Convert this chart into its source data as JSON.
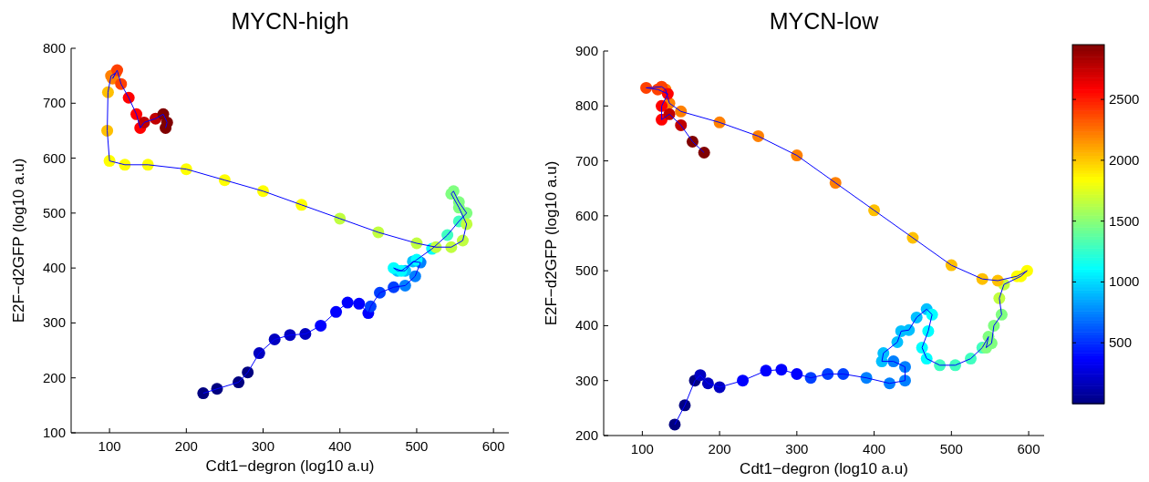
{
  "chart_data": [
    {
      "type": "scatter",
      "title": "MYCN-high",
      "xlabel": "Cdt1−degron (log10 a.u)",
      "ylabel": "E2F−d2GFP (log10 a.u)",
      "xlim": [
        50,
        620
      ],
      "ylim": [
        100,
        800
      ],
      "xticks": [
        100,
        200,
        300,
        400,
        500,
        600
      ],
      "yticks": [
        100,
        200,
        300,
        400,
        500,
        600,
        700,
        800
      ],
      "grid": false,
      "marker": "circle",
      "x": [
        222,
        240,
        268,
        280,
        295,
        315,
        335,
        355,
        375,
        395,
        410,
        425,
        437,
        440,
        452,
        470,
        485,
        498,
        505,
        495,
        485,
        475,
        470,
        480,
        500,
        520,
        540,
        555,
        565,
        555,
        548,
        545,
        555,
        565,
        560,
        545,
        525,
        500,
        450,
        400,
        350,
        300,
        250,
        200,
        150,
        120,
        100,
        97,
        98,
        102,
        108,
        104,
        110,
        115,
        125,
        135,
        140,
        145,
        160,
        170,
        175,
        173
      ],
      "values": [
        172,
        180,
        192,
        210,
        245,
        270,
        278,
        280,
        295,
        320,
        337,
        335,
        318,
        330,
        355,
        365,
        368,
        385,
        410,
        412,
        395,
        395,
        400,
        395,
        415,
        435,
        460,
        485,
        500,
        520,
        540,
        535,
        510,
        480,
        450,
        438,
        438,
        445,
        465,
        490,
        515,
        540,
        560,
        580,
        588,
        588,
        595,
        650,
        720,
        750,
        755,
        745,
        760,
        735,
        710,
        680,
        655,
        665,
        672,
        680,
        665,
        655
      ],
      "colors": [
        "#000080",
        "#000080",
        "#000080",
        "#000080",
        "#0000c0",
        "#0000c0",
        "#0000c0",
        "#0000c0",
        "#0000ff",
        "#0000ff",
        "#0000ff",
        "#0000ff",
        "#0000ff",
        "#0040ff",
        "#0040ff",
        "#0040ff",
        "#0080ff",
        "#0080ff",
        "#0080ff",
        "#00c0ff",
        "#00c0ff",
        "#00c0ff",
        "#00ffff",
        "#00ffff",
        "#00ffff",
        "#00ffff",
        "#40ffc0",
        "#40ffc0",
        "#80ff80",
        "#80ff80",
        "#80ff80",
        "#80ff80",
        "#80ff80",
        "#c0ff40",
        "#c0ff40",
        "#c0ff40",
        "#c0ff40",
        "#c0ff40",
        "#c0ff40",
        "#c0ff40",
        "#ffff00",
        "#ffff00",
        "#ffff00",
        "#ffff00",
        "#ffff00",
        "#ffff00",
        "#ffff00",
        "#ffc000",
        "#ffc000",
        "#ff8000",
        "#ff8000",
        "#ff8000",
        "#ff4000",
        "#ff4000",
        "#ff0000",
        "#ff0000",
        "#ff0000",
        "#c00000",
        "#c00000",
        "#800000",
        "#800000",
        "#800000"
      ],
      "series": [
        {
          "type": "line",
          "marker": "none",
          "color": "#0000ff",
          "x": [
            222,
            240,
            268,
            280,
            295,
            315,
            335,
            355,
            375,
            395,
            410,
            425,
            437,
            440,
            452,
            470,
            485,
            498,
            505,
            495,
            485,
            475,
            470,
            480,
            500,
            520,
            540,
            555,
            565,
            555,
            548,
            545,
            555,
            565,
            560,
            545,
            525,
            500,
            450,
            400,
            350,
            300,
            250,
            200,
            150,
            120,
            100,
            97,
            98,
            102,
            108,
            104,
            110,
            115,
            125,
            135,
            140,
            145,
            160,
            170,
            175,
            173
          ],
          "values": [
            172,
            180,
            192,
            210,
            245,
            270,
            278,
            280,
            295,
            320,
            337,
            335,
            318,
            330,
            355,
            365,
            368,
            385,
            410,
            412,
            395,
            395,
            400,
            395,
            415,
            435,
            460,
            485,
            500,
            520,
            540,
            535,
            510,
            480,
            450,
            438,
            438,
            445,
            465,
            490,
            515,
            540,
            560,
            580,
            588,
            588,
            595,
            650,
            720,
            750,
            755,
            745,
            760,
            735,
            710,
            680,
            655,
            665,
            672,
            680,
            665,
            655
          ]
        }
      ]
    },
    {
      "type": "scatter",
      "title": "MYCN-low",
      "xlabel": "Cdt1−degron (log10 a.u)",
      "ylabel": "E2F−d2GFP (log10 a.u)",
      "xlim": [
        50,
        620
      ],
      "ylim": [
        200,
        900
      ],
      "xticks": [
        100,
        200,
        300,
        400,
        500,
        600
      ],
      "yticks": [
        200,
        300,
        400,
        500,
        600,
        700,
        800,
        900
      ],
      "clim": [
        0,
        2950
      ],
      "cticks": [
        500,
        1000,
        1500,
        2000,
        2500
      ],
      "grid": false,
      "marker": "circle",
      "x": [
        142,
        155,
        168,
        175,
        185,
        200,
        230,
        260,
        280,
        300,
        318,
        340,
        360,
        390,
        420,
        440,
        440,
        425,
        410,
        412,
        430,
        435,
        445,
        455,
        468,
        475,
        470,
        462,
        468,
        485,
        505,
        525,
        540,
        548,
        545,
        552,
        555,
        565,
        562,
        568,
        590,
        598,
        585,
        560,
        540,
        500,
        450,
        400,
        350,
        300,
        250,
        200,
        150,
        135,
        130,
        125,
        105,
        120,
        133,
        125,
        125,
        135,
        150,
        165,
        180
      ],
      "values": [
        220,
        255,
        300,
        310,
        295,
        288,
        300,
        318,
        320,
        312,
        305,
        312,
        312,
        305,
        295,
        300,
        325,
        335,
        335,
        350,
        370,
        390,
        392,
        415,
        430,
        420,
        390,
        360,
        340,
        328,
        328,
        340,
        360,
        380,
        360,
        368,
        400,
        420,
        450,
        475,
        490,
        500,
        490,
        482,
        485,
        510,
        560,
        610,
        660,
        710,
        745,
        770,
        790,
        805,
        830,
        835,
        833,
        830,
        822,
        800,
        775,
        785,
        765,
        735,
        715
      ],
      "colors": [
        "#000080",
        "#000080",
        "#000080",
        "#0000c0",
        "#0000c0",
        "#0000c0",
        "#0000ff",
        "#0000ff",
        "#0000ff",
        "#0000ff",
        "#0040ff",
        "#0040ff",
        "#0040ff",
        "#0080ff",
        "#0080ff",
        "#0080ff",
        "#0080ff",
        "#0080ff",
        "#00c0ff",
        "#00c0ff",
        "#00c0ff",
        "#00c0ff",
        "#00c0ff",
        "#00c0ff",
        "#00c0ff",
        "#00ffff",
        "#00ffff",
        "#00ffff",
        "#00ffff",
        "#40ffc0",
        "#40ffc0",
        "#40ffc0",
        "#40ffc0",
        "#80ff80",
        "#80ff80",
        "#80ff80",
        "#80ff80",
        "#80ff80",
        "#c0ff40",
        "#c0ff40",
        "#ffff00",
        "#ffff00",
        "#ffff00",
        "#ffc000",
        "#ffc000",
        "#ffc000",
        "#ffc000",
        "#ffc000",
        "#ff8000",
        "#ff8000",
        "#ff8000",
        "#ff8000",
        "#ff8000",
        "#ff8000",
        "#ff8000",
        "#ff4000",
        "#ff4000",
        "#ff4000",
        "#ff0000",
        "#ff0000",
        "#ff0000",
        "#c00000",
        "#c00000",
        "#800000",
        "#800000"
      ],
      "series": [
        {
          "type": "line",
          "marker": "none",
          "color": "#0000ff",
          "x": [
            142,
            155,
            168,
            175,
            185,
            200,
            230,
            260,
            280,
            300,
            318,
            340,
            360,
            390,
            420,
            440,
            440,
            425,
            410,
            412,
            430,
            435,
            445,
            455,
            468,
            475,
            470,
            462,
            468,
            485,
            505,
            525,
            540,
            548,
            545,
            552,
            555,
            565,
            562,
            568,
            590,
            598,
            585,
            560,
            540,
            500,
            450,
            400,
            350,
            300,
            250,
            200,
            150,
            135,
            130,
            125,
            105,
            120,
            133,
            125,
            125,
            135,
            150,
            165,
            180
          ],
          "values": [
            220,
            255,
            300,
            310,
            295,
            288,
            300,
            318,
            320,
            312,
            305,
            312,
            312,
            305,
            295,
            300,
            325,
            335,
            335,
            350,
            370,
            390,
            392,
            415,
            430,
            420,
            390,
            360,
            340,
            328,
            328,
            340,
            360,
            380,
            360,
            368,
            400,
            420,
            450,
            475,
            490,
            500,
            490,
            482,
            485,
            510,
            560,
            610,
            660,
            710,
            745,
            770,
            790,
            805,
            830,
            835,
            833,
            830,
            822,
            800,
            775,
            785,
            765,
            735,
            715
          ]
        }
      ]
    }
  ]
}
